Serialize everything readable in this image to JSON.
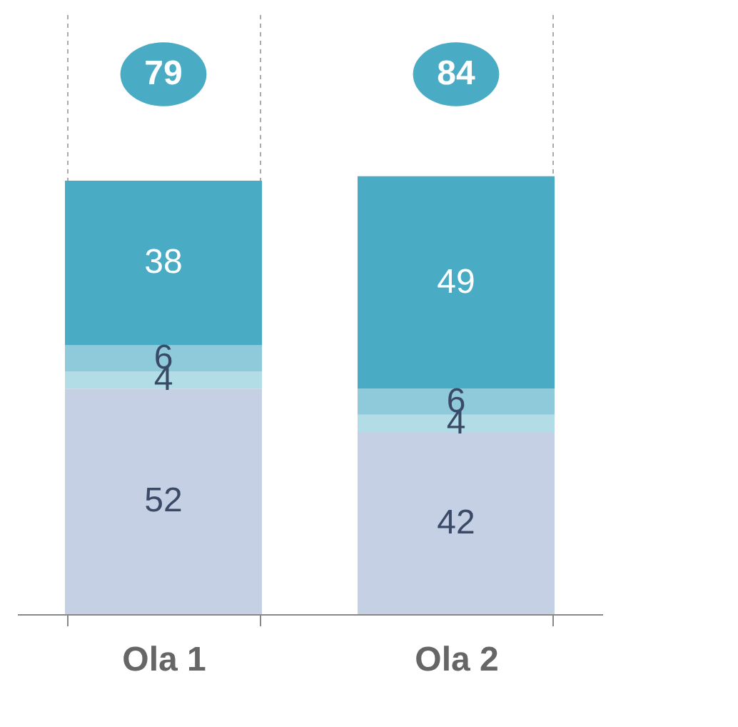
{
  "chart_data": {
    "type": "bar",
    "stacked": true,
    "data_labels": true,
    "grid": "x",
    "categories": [
      "Ola 1",
      "Ola 2"
    ],
    "series": [
      {
        "color": "#c6d0e4",
        "values": [
          52,
          42
        ]
      },
      {
        "color": "#b2dde6",
        "values": [
          4,
          4
        ]
      },
      {
        "color": "#8fcadb",
        "values": [
          6,
          6
        ]
      },
      {
        "color": "#4aabc5",
        "values": [
          38,
          49
        ]
      }
    ],
    "annotations": [
      "79",
      "84"
    ]
  }
}
